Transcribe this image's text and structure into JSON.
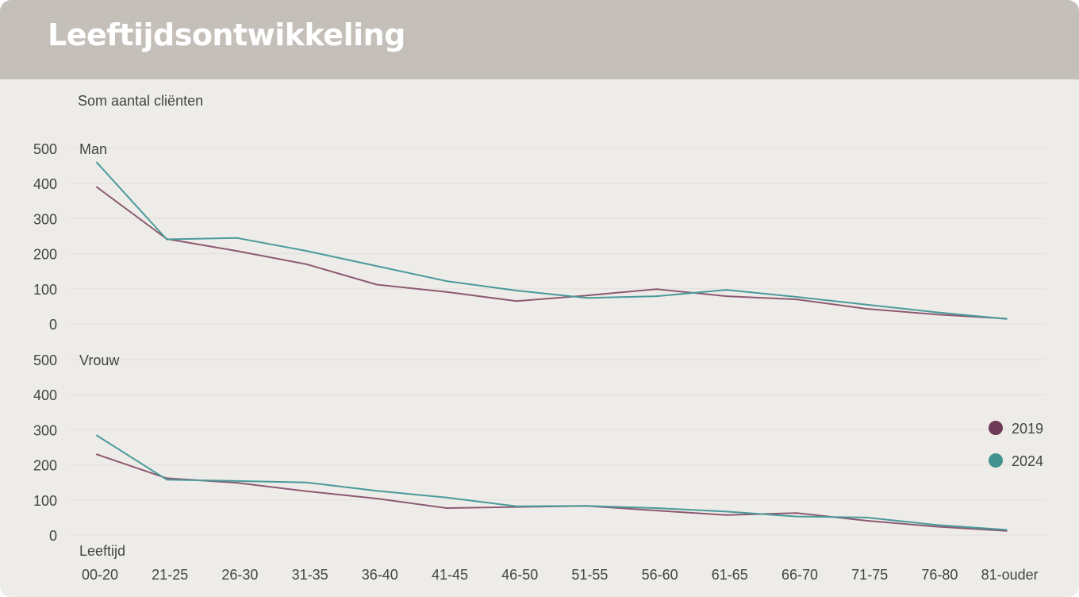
{
  "header": {
    "title": "Leeftijdsontwikkeling"
  },
  "chart_data": {
    "type": "line",
    "ylabel": "Som aantal cliënten",
    "xlabel": "Leeftijd",
    "categories": [
      "00-20",
      "21-25",
      "26-30",
      "31-35",
      "36-40",
      "41-45",
      "46-50",
      "51-55",
      "56-60",
      "61-65",
      "66-70",
      "71-75",
      "76-80",
      "81-ouder"
    ],
    "ylim": [
      0,
      500
    ],
    "yticks": [
      0,
      100,
      200,
      300,
      400,
      500
    ],
    "grid": true,
    "legend_position": "right",
    "panels": [
      {
        "label": "Man",
        "series": [
          {
            "name": "2019",
            "color": "#8c5a72",
            "values": [
              390,
              242,
              208,
              170,
              112,
              91,
              65,
              81,
              99,
              79,
              70,
              43,
              27,
              15
            ]
          },
          {
            "name": "2024",
            "color": "#4a9a9a",
            "values": [
              460,
              241,
              245,
              208,
              165,
              122,
              95,
              74,
              79,
              97,
              77,
              55,
              33,
              14
            ]
          }
        ]
      },
      {
        "label": "Vrouw",
        "series": [
          {
            "name": "2019",
            "color": "#8c5a72",
            "values": [
              230,
              162,
              149,
              125,
              104,
              77,
              80,
              83,
              70,
              57,
              63,
              41,
              24,
              12
            ]
          },
          {
            "name": "2024",
            "color": "#4a9a9a",
            "values": [
              284,
              158,
              154,
              150,
              126,
              107,
              82,
              83,
              77,
              67,
              53,
              50,
              29,
              15
            ]
          }
        ]
      }
    ],
    "legend": [
      {
        "name": "2019",
        "color": "#6e3a58"
      },
      {
        "name": "2024",
        "color": "#44928f"
      }
    ]
  }
}
